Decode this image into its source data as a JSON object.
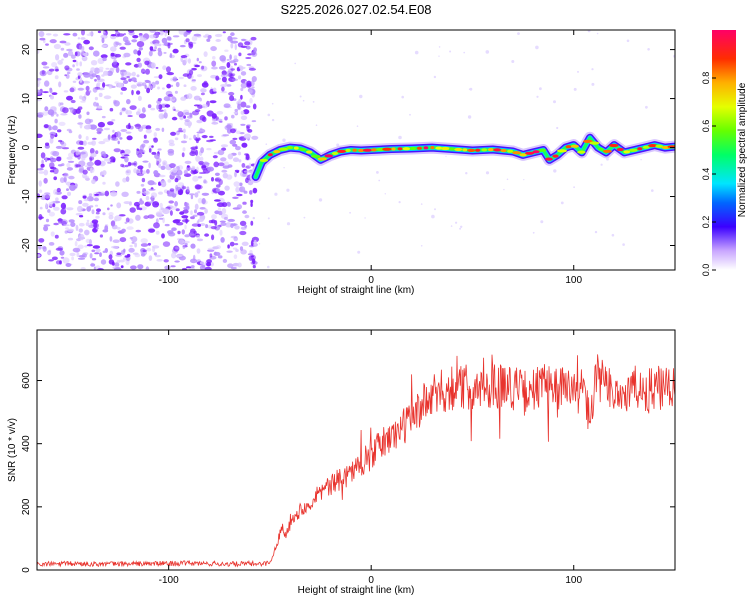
{
  "title": "S225.2026.027.02.54.E08",
  "chart_data": [
    {
      "type": "heatmap",
      "xlabel": "Height of straight line (km)",
      "ylabel": "Frequency (Hz)",
      "xlim": [
        -165,
        150
      ],
      "ylim": [
        -25,
        24
      ],
      "xticks": [
        -100,
        0,
        100
      ],
      "xtick_labels": [
        "-100",
        "0",
        "100"
      ],
      "yticks": [
        -20,
        -10,
        0,
        10,
        20
      ],
      "ytick_labels": [
        "-20",
        "-10",
        "0",
        "10",
        "20"
      ],
      "noise_region_end_km": -57,
      "signal_ridge": {
        "x": [
          -57,
          -54,
          -50,
          -45,
          -40,
          -35,
          -30,
          -25,
          -20,
          -15,
          -10,
          -5,
          0,
          10,
          20,
          30,
          40,
          50,
          60,
          70,
          75,
          80,
          85,
          88,
          92,
          96,
          100,
          104,
          108,
          112,
          116,
          120,
          125,
          130,
          135,
          140,
          145,
          150
        ],
        "freq": [
          -6,
          -3,
          -1.5,
          -0.5,
          0,
          -0.2,
          -1,
          -2.5,
          -1.5,
          -0.8,
          -0.5,
          -0.6,
          -0.5,
          -0.3,
          -0.2,
          0,
          -0.3,
          -0.6,
          -0.4,
          -0.8,
          -1.5,
          -1,
          -0.5,
          -2.5,
          -1.5,
          0,
          0.5,
          -1,
          2,
          0,
          -1,
          0.5,
          -1,
          -0.5,
          0,
          0.5,
          0,
          0.2
        ]
      },
      "colorbar": {
        "label": "Normalized spectral amplitude",
        "ticks": [
          0.0,
          0.2,
          0.4,
          0.6,
          0.8
        ],
        "tick_labels": [
          "0.0",
          "0.2",
          "0.4",
          "0.6",
          "0.8"
        ],
        "range": [
          0,
          1
        ]
      }
    },
    {
      "type": "line",
      "xlabel": "Height of straight line (km)",
      "ylabel": "SNR (10 * v/v)",
      "xlim": [
        -165,
        150
      ],
      "ylim": [
        0,
        760
      ],
      "xticks": [
        -100,
        0,
        100
      ],
      "xtick_labels": [
        "-100",
        "0",
        "100"
      ],
      "yticks": [
        0,
        200,
        400,
        600
      ],
      "ytick_labels": [
        "0",
        "200",
        "400",
        "600"
      ],
      "series": [
        {
          "name": "SNR",
          "color": "#e8332d",
          "x": [
            -165,
            -150,
            -130,
            -110,
            -90,
            -70,
            -55,
            -50,
            -48,
            -46,
            -44,
            -42,
            -40,
            -35,
            -30,
            -25,
            -20,
            -15,
            -10,
            -5,
            0,
            5,
            10,
            15,
            20,
            25,
            30,
            35,
            40,
            45,
            50,
            55,
            60,
            65,
            70,
            75,
            80,
            85,
            90,
            95,
            100,
            105,
            108,
            110,
            112,
            115,
            120,
            125,
            130,
            135,
            140,
            145,
            150
          ],
          "values": [
            18,
            20,
            19,
            20,
            21,
            19,
            20,
            22,
            55,
            95,
            140,
            110,
            160,
            190,
            220,
            250,
            265,
            290,
            310,
            340,
            360,
            400,
            420,
            450,
            480,
            520,
            545,
            565,
            580,
            575,
            585,
            570,
            590,
            585,
            580,
            560,
            570,
            580,
            590,
            575,
            560,
            575,
            470,
            560,
            620,
            580,
            570,
            555,
            575,
            560,
            575,
            570,
            565
          ]
        }
      ]
    }
  ]
}
